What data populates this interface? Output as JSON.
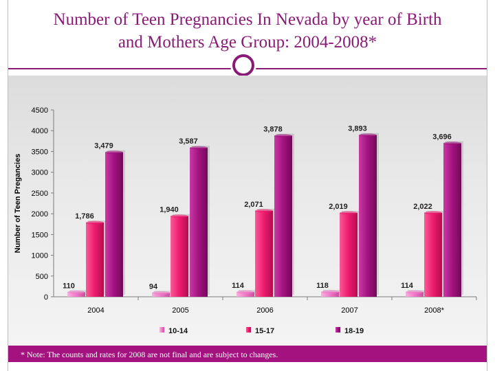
{
  "slide": {
    "title_line1": "Number of Teen Pregnancies In Nevada by year of Birth",
    "title_line2": "and Mothers Age Group: 2004-2008*",
    "note": "* Note: The counts and rates for 2008 are not final and are subject to changes."
  },
  "chart_data": {
    "type": "bar",
    "title": "",
    "xlabel": "",
    "ylabel": "Number of Teen Pregancies",
    "categories": [
      "2004",
      "2005",
      "2006",
      "2007",
      "2008*"
    ],
    "series": [
      {
        "name": "10-14",
        "values": [
          110,
          94,
          114,
          118,
          114
        ],
        "labels": [
          "110",
          "94",
          "114",
          "118",
          "114"
        ],
        "color": "#f07ac8"
      },
      {
        "name": "15-17",
        "values": [
          1786,
          1940,
          2071,
          2019,
          2022
        ],
        "labels": [
          "1,786",
          "1,940",
          "2,071",
          "2,019",
          "2,022"
        ],
        "color": "#ee1a6e"
      },
      {
        "name": "18-19",
        "values": [
          3479,
          3587,
          3878,
          3893,
          3696
        ],
        "labels": [
          "3,479",
          "3,587",
          "3,878",
          "3,893",
          "3,696"
        ],
        "color": "#a3127f"
      }
    ],
    "ylim": [
      0,
      4500
    ],
    "yticks": [
      0,
      500,
      1000,
      1500,
      2000,
      2500,
      3000,
      3500,
      4000,
      4500
    ],
    "grid": false,
    "legend_position": "bottom"
  }
}
